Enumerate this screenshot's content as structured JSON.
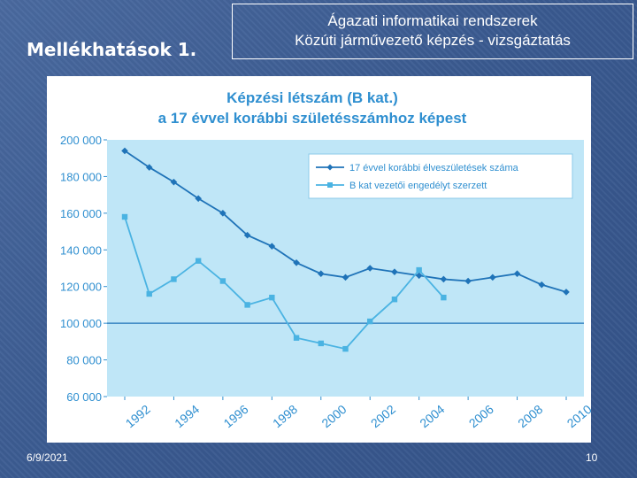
{
  "slide": {
    "title": "Mellékhatások 1.",
    "header_line1": "Ágazati informatikai rendszerek",
    "header_line2": "Közúti járművezető képzés - vizsgáztatás",
    "date": "6/9/2021",
    "page_number": "10"
  },
  "chart_data": {
    "type": "line",
    "title": "Képzési létszám (B kat.)",
    "subtitle": "a 17 évvel korábbi születésszámhoz képest",
    "x": [
      1992,
      1993,
      1994,
      1995,
      1996,
      1997,
      1998,
      1999,
      2000,
      2001,
      2002,
      2003,
      2004,
      2005,
      2006,
      2007,
      2008,
      2009,
      2010
    ],
    "x_tick_labels": [
      "1992",
      "1994",
      "1996",
      "1998",
      "2000",
      "2002",
      "2004",
      "2006",
      "2008",
      "2010"
    ],
    "y_tick_labels": [
      "200 000",
      "180 000",
      "160 000",
      "140 000",
      "120 000",
      "100 000",
      "80 000",
      "60 000"
    ],
    "ylim": [
      60000,
      200000
    ],
    "reference_line": 100000,
    "legend_position": "top-right",
    "colors": {
      "series1": "#1f73b8",
      "series2": "#4ab3e2",
      "plot_bg": "#bfe6f7",
      "text": "#2f8fd0"
    },
    "series": [
      {
        "name": "17 évvel korábbi élveszületések száma",
        "values": [
          194000,
          185000,
          177000,
          168000,
          160000,
          148000,
          142000,
          133000,
          127000,
          125000,
          130000,
          128000,
          126000,
          124000,
          123000,
          125000,
          127000,
          121000,
          117000
        ]
      },
      {
        "name": "B kat vezetői engedélyt szerzett",
        "values": [
          158000,
          116000,
          124000,
          134000,
          123000,
          110000,
          114000,
          92000,
          89000,
          86000,
          101000,
          113000,
          129000,
          114000,
          null,
          null,
          null,
          null,
          null
        ]
      }
    ]
  }
}
